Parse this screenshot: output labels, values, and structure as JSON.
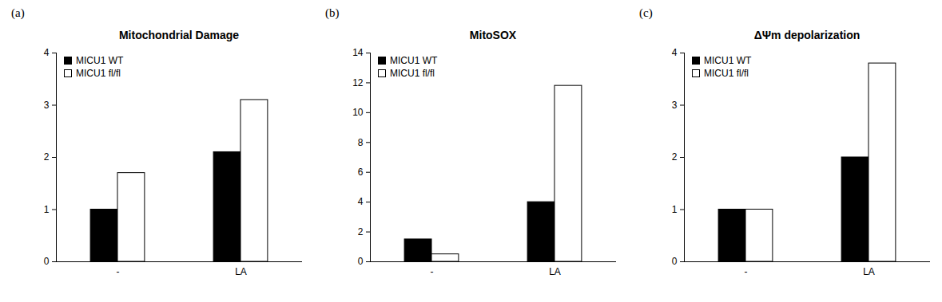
{
  "chart_data": [
    {
      "type": "bar",
      "annotation": "(a)",
      "title": "Mitochondrial Damage",
      "categories": [
        "-",
        "LA"
      ],
      "series": [
        {
          "name": "MICU1 WT",
          "color": "#000000",
          "values": [
            1,
            2.1
          ]
        },
        {
          "name": "MICU1 fl/fl",
          "color": "#ffffff",
          "values": [
            1.7,
            3.1
          ]
        }
      ],
      "ylim": [
        0,
        4
      ],
      "yticks": [
        0,
        1,
        2,
        3,
        4
      ],
      "grid": false,
      "legend": "top-left"
    },
    {
      "type": "bar",
      "annotation": "(b)",
      "title": "MitoSOX",
      "categories": [
        "-",
        "LA"
      ],
      "series": [
        {
          "name": "MICU1 WT",
          "color": "#000000",
          "values": [
            1.5,
            4
          ]
        },
        {
          "name": "MICU1 fl/fl",
          "color": "#ffffff",
          "values": [
            0.5,
            11.8
          ]
        }
      ],
      "ylim": [
        0,
        14
      ],
      "yticks": [
        0,
        2,
        4,
        6,
        8,
        10,
        12,
        14
      ],
      "grid": false,
      "legend": "top-left"
    },
    {
      "type": "bar",
      "annotation": "(c)",
      "title": "ΔΨm depolarization",
      "categories": [
        "-",
        "LA"
      ],
      "series": [
        {
          "name": "MICU1 WT",
          "color": "#000000",
          "values": [
            1,
            2
          ]
        },
        {
          "name": "MICU1 fl/fl",
          "color": "#ffffff",
          "values": [
            1,
            3.8
          ]
        }
      ],
      "ylim": [
        0,
        4
      ],
      "yticks": [
        0,
        1,
        2,
        3,
        4
      ],
      "grid": false,
      "legend": "top-left"
    }
  ]
}
